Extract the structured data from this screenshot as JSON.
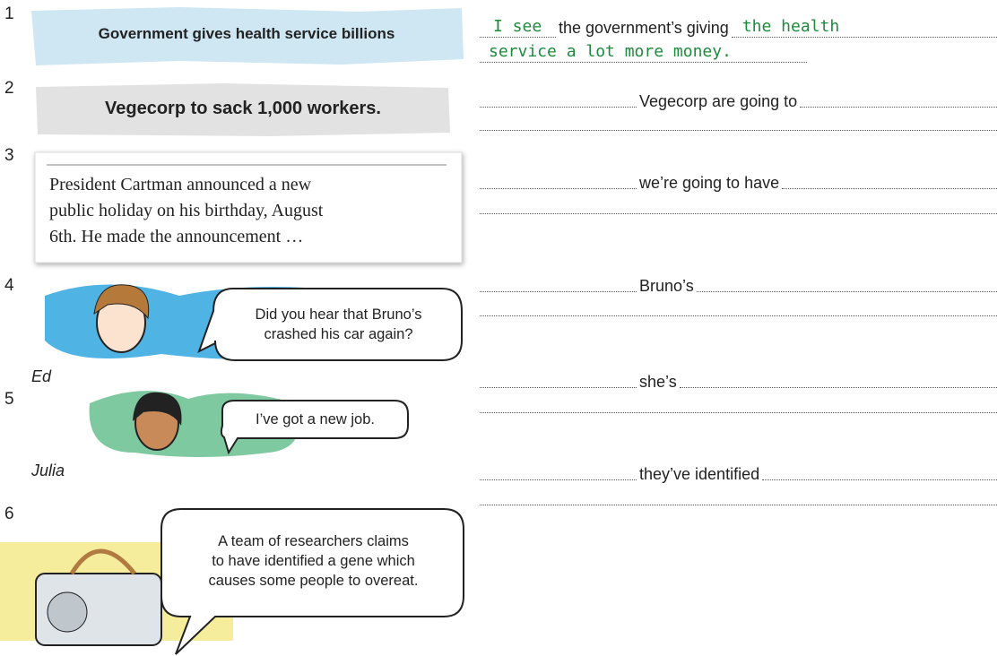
{
  "items": [
    {
      "number": "1",
      "headline": "Government gives health service billions",
      "answer": {
        "start": "I see",
        "prompt": "the government’s giving",
        "end": "the health",
        "next_line": "service a lot more money."
      }
    },
    {
      "number": "2",
      "headline": "Vegecorp to sack 1,000 workers.",
      "prompt": "Vegecorp are going to"
    },
    {
      "number": "3",
      "article": [
        "President Cartman announced a new",
        "public holiday on his birthday, August",
        "6th. He made the announcement …"
      ],
      "prompt": "we’re going to have"
    },
    {
      "number": "4",
      "speech": [
        "Did you hear that Bruno’s",
        "crashed his car again?"
      ],
      "speaker": "Ed",
      "prompt": "Bruno’s"
    },
    {
      "number": "5",
      "speech": [
        "I’ve got a new job."
      ],
      "speaker": "Julia",
      "prompt": "she’s"
    },
    {
      "number": "6",
      "speech": [
        "A team of researchers claims",
        "to have identified a gene which",
        "causes some people to overeat."
      ],
      "prompt": "they’ve identified"
    }
  ]
}
